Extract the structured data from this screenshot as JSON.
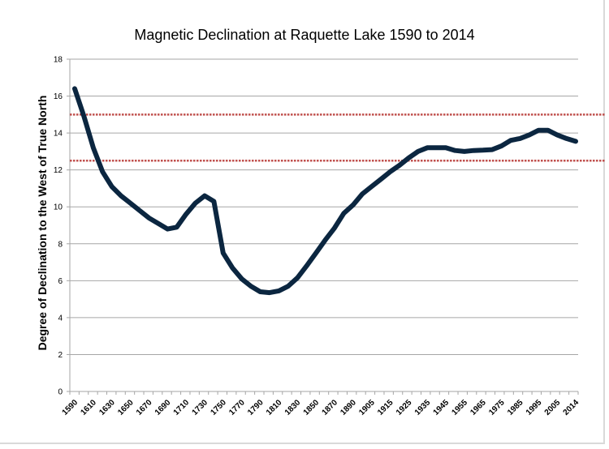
{
  "chart_data": {
    "type": "line",
    "title": "Magnetic Declination at Raquette Lake 1590 to 2014",
    "xlabel": "",
    "ylabel": "Degree of Declination to the West of True North",
    "ylim": [
      0,
      18
    ],
    "yticks": [
      "0",
      "2",
      "4",
      "6",
      "8",
      "10",
      "12",
      "14",
      "16",
      "18"
    ],
    "grid": true,
    "x": [
      1590,
      1600,
      1610,
      1620,
      1630,
      1640,
      1650,
      1660,
      1670,
      1680,
      1690,
      1700,
      1710,
      1720,
      1730,
      1740,
      1750,
      1760,
      1770,
      1780,
      1790,
      1800,
      1810,
      1820,
      1830,
      1840,
      1850,
      1860,
      1870,
      1880,
      1890,
      1900,
      1905,
      1910,
      1915,
      1920,
      1925,
      1930,
      1935,
      1940,
      1945,
      1950,
      1955,
      1960,
      1965,
      1970,
      1975,
      1980,
      1985,
      1990,
      1995,
      2000,
      2005,
      2010,
      2014
    ],
    "xtick_labels": [
      "1590",
      "1610",
      "1630",
      "1650",
      "1670",
      "1690",
      "1710",
      "1730",
      "1750",
      "1770",
      "1790",
      "1810",
      "1830",
      "1850",
      "1870",
      "1890",
      "1905",
      "1915",
      "1925",
      "1935",
      "1945",
      "1955",
      "1965",
      "1975",
      "1985",
      "1995",
      "2005",
      "2014"
    ],
    "series": [
      {
        "color": "#0b2640",
        "values": [
          16.4,
          14.9,
          13.2,
          11.9,
          11.1,
          10.6,
          10.2,
          9.8,
          9.4,
          9.1,
          8.8,
          8.9,
          9.6,
          10.2,
          10.6,
          10.3,
          7.5,
          6.7,
          6.1,
          5.7,
          5.4,
          5.35,
          5.45,
          5.7,
          6.15,
          6.8,
          7.5,
          8.2,
          8.85,
          9.65,
          10.1,
          10.7,
          11.1,
          11.5,
          11.9,
          12.25,
          12.65,
          13.0,
          13.2,
          13.2,
          13.2,
          13.05,
          13.0,
          13.05,
          13.07,
          13.1,
          13.3,
          13.6,
          13.7,
          13.9,
          14.15,
          14.15,
          13.9,
          13.7,
          13.55
        ]
      }
    ],
    "reference_lines": [
      {
        "y": 15,
        "color": "#c0504d",
        "style": "dotted"
      },
      {
        "y": 12.5,
        "color": "#c0504d",
        "style": "dotted"
      }
    ]
  }
}
